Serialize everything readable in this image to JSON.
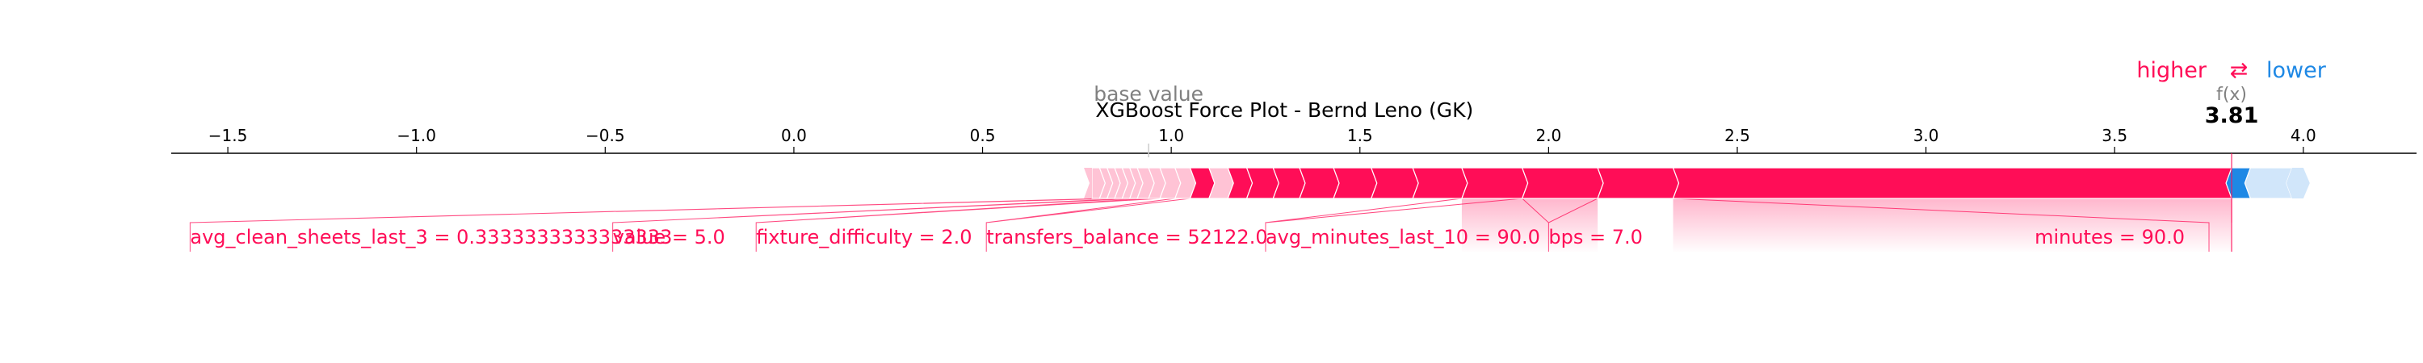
{
  "legend": {
    "higher_label": "higher",
    "arrow_symbol": "⇄",
    "lower_label": "lower"
  },
  "colors": {
    "positive": "#ff0d57",
    "positive_light": "#ffc3d5",
    "negative": "#1e88e5",
    "negative_light": "#d1e6fa",
    "axis": "#000000",
    "muted": "#808080"
  },
  "chart_data": {
    "type": "force",
    "title": "XGBoost Force Plot - Bernd Leno (GK)",
    "base_value_label": "base value",
    "base_value": 0.94,
    "fx_label": "f(x)",
    "output_value": 3.81,
    "output_text": "3.81",
    "xlim": [
      -1.65,
      4.3
    ],
    "ticks": [
      -1.5,
      -1.0,
      -0.5,
      0.0,
      0.5,
      1.0,
      1.5,
      2.0,
      2.5,
      3.0,
      3.5,
      4.0
    ],
    "tick_labels": [
      "−1.5",
      "−1.0",
      "−0.5",
      "0.0",
      "0.5",
      "1.0",
      "1.5",
      "2.0",
      "2.5",
      "3.0",
      "3.5",
      "4.0"
    ],
    "positive_segments": [
      0.79,
      0.81,
      0.83,
      0.85,
      0.87,
      0.89,
      0.91,
      0.94,
      0.97,
      1.01,
      1.05,
      1.1,
      1.15,
      1.2,
      1.27,
      1.34,
      1.43,
      1.53,
      1.64,
      1.77,
      1.93,
      2.13,
      2.33,
      3.81
    ],
    "negative_segments": [
      3.81,
      3.86,
      3.97
    ],
    "labeled_features": [
      {
        "label": "avg_clean_sheets_last_3 = 0.3333333333333333",
        "x0": 0.83,
        "x1": 0.85,
        "label_x": -1.6,
        "anchor": "start"
      },
      {
        "label": "value = 5.0",
        "x0": 0.89,
        "x1": 0.91,
        "label_x": -0.48,
        "anchor": "start"
      },
      {
        "label": "fixture_difficulty = 2.0",
        "x0": 0.94,
        "x1": 0.97,
        "label_x": -0.1,
        "anchor": "start"
      },
      {
        "label": "transfers_balance = 52122.0",
        "x0": 1.01,
        "x1": 1.05,
        "label_x": 0.51,
        "anchor": "start"
      },
      {
        "label": "avg_minutes_last_10 = 90.0",
        "x0": 1.77,
        "x1": 1.93,
        "label_x": 1.25,
        "anchor": "start"
      },
      {
        "label": "bps = 7.0",
        "x0": 1.93,
        "x1": 2.13,
        "label_x": 2.0,
        "anchor": "start"
      },
      {
        "label": "minutes = 90.0",
        "x0": 2.33,
        "x1": 3.81,
        "label_x": 3.75,
        "anchor": "end"
      }
    ]
  }
}
